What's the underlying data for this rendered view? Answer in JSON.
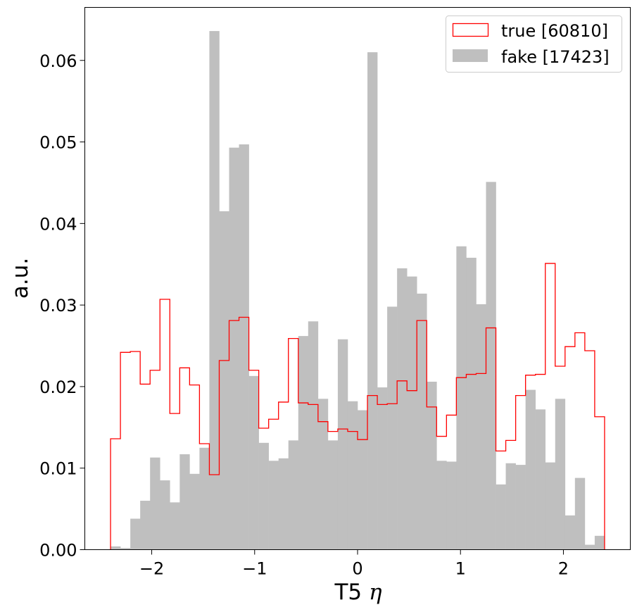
{
  "chart_data": {
    "type": "histogram",
    "xlabel": "T5 η",
    "xlabel_text": "T5",
    "xlabel_symbol": "η",
    "ylabel": "a.u.",
    "xlim": [
      -2.65,
      2.65
    ],
    "ylim": [
      0,
      0.0665
    ],
    "bin_range": [
      -2.4,
      2.4
    ],
    "n_bins": 50,
    "xticks": [
      -2,
      -1,
      0,
      1,
      2
    ],
    "xtick_labels": [
      "−2",
      "−1",
      "0",
      "1",
      "2"
    ],
    "yticks": [
      0,
      0.01,
      0.02,
      0.03,
      0.04,
      0.05,
      0.06
    ],
    "ytick_labels": [
      "0.00",
      "0.01",
      "0.02",
      "0.03",
      "0.04",
      "0.05",
      "0.06"
    ],
    "legend_position": "top-right",
    "series": [
      {
        "name": "true [60810]",
        "style": "step",
        "color": "#ff0000",
        "values": [
          0.0136,
          0.0242,
          0.0243,
          0.0203,
          0.022,
          0.0307,
          0.0167,
          0.0223,
          0.0202,
          0.013,
          0.0092,
          0.0232,
          0.0281,
          0.0285,
          0.022,
          0.0149,
          0.016,
          0.0181,
          0.0259,
          0.018,
          0.0178,
          0.0157,
          0.0145,
          0.0148,
          0.0145,
          0.0135,
          0.0189,
          0.0178,
          0.0179,
          0.0207,
          0.0195,
          0.0281,
          0.0175,
          0.0139,
          0.0165,
          0.0211,
          0.0215,
          0.0216,
          0.0272,
          0.0121,
          0.0134,
          0.0189,
          0.0214,
          0.0215,
          0.0351,
          0.0225,
          0.0249,
          0.0266,
          0.0244,
          0.0163
        ]
      },
      {
        "name": "fake [17423]",
        "style": "filled",
        "color": "#bfbfbf",
        "values": [
          0.0004,
          0.0002,
          0.0038,
          0.006,
          0.0113,
          0.0085,
          0.0058,
          0.0117,
          0.0093,
          0.0125,
          0.0636,
          0.0415,
          0.0493,
          0.0497,
          0.0213,
          0.0131,
          0.0109,
          0.0112,
          0.0134,
          0.0262,
          0.028,
          0.0185,
          0.0134,
          0.0258,
          0.0182,
          0.0171,
          0.061,
          0.0199,
          0.0298,
          0.0345,
          0.0335,
          0.0314,
          0.0206,
          0.0109,
          0.0108,
          0.0372,
          0.0358,
          0.0301,
          0.0451,
          0.008,
          0.0106,
          0.0104,
          0.0196,
          0.0172,
          0.0107,
          0.0185,
          0.0042,
          0.0088,
          0.0006,
          0.0017
        ]
      }
    ]
  }
}
